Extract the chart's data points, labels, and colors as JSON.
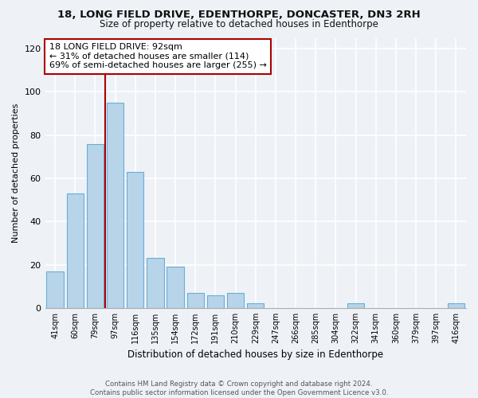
{
  "title1": "18, LONG FIELD DRIVE, EDENTHORPE, DONCASTER, DN3 2RH",
  "title2": "Size of property relative to detached houses in Edenthorpe",
  "xlabel": "Distribution of detached houses by size in Edenthorpe",
  "ylabel": "Number of detached properties",
  "bar_labels": [
    "41sqm",
    "60sqm",
    "79sqm",
    "97sqm",
    "116sqm",
    "135sqm",
    "154sqm",
    "172sqm",
    "191sqm",
    "210sqm",
    "229sqm",
    "247sqm",
    "266sqm",
    "285sqm",
    "304sqm",
    "322sqm",
    "341sqm",
    "360sqm",
    "379sqm",
    "397sqm",
    "416sqm"
  ],
  "bar_values": [
    17,
    53,
    76,
    95,
    63,
    23,
    19,
    7,
    6,
    7,
    2,
    0,
    0,
    0,
    0,
    2,
    0,
    0,
    0,
    0,
    2
  ],
  "bar_color": "#b8d4e8",
  "bar_edge_color": "#6aaed6",
  "marker_color": "#aa0000",
  "ylim": [
    0,
    125
  ],
  "yticks": [
    0,
    20,
    40,
    60,
    80,
    100,
    120
  ],
  "annotation_lines": [
    "18 LONG FIELD DRIVE: 92sqm",
    "← 31% of detached houses are smaller (114)",
    "69% of semi-detached houses are larger (255) →"
  ],
  "annotation_box_color": "#ffffff",
  "annotation_box_edge_color": "#aa0000",
  "footer1": "Contains HM Land Registry data © Crown copyright and database right 2024.",
  "footer2": "Contains public sector information licensed under the Open Government Licence v3.0.",
  "bg_color": "#eef2f7"
}
